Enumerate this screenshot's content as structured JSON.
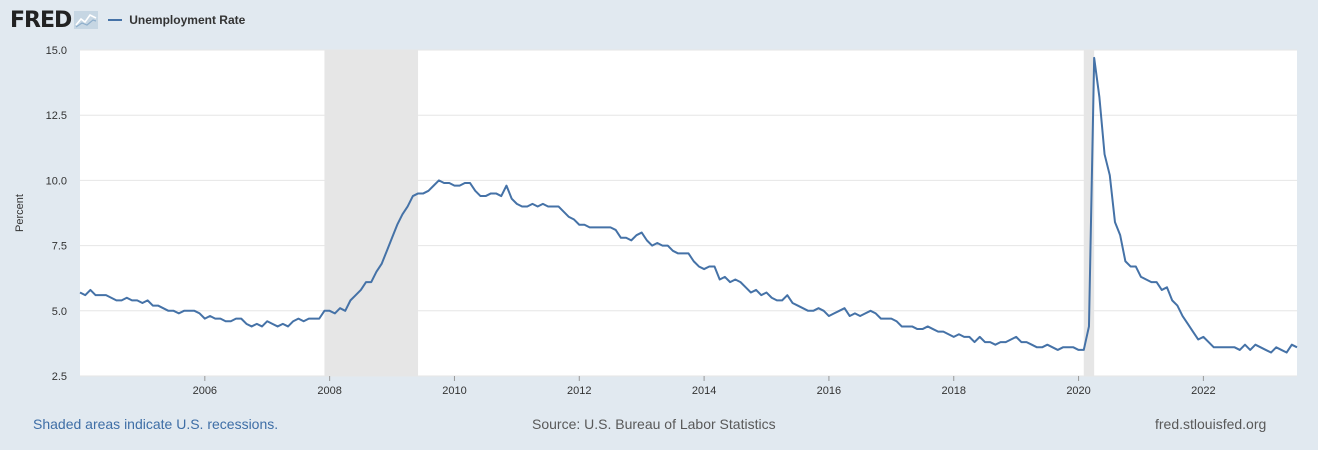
{
  "header": {
    "logo_text": "FRED",
    "logo_icon": "fred-chart-graph-icon",
    "legend_label": "Unemployment Rate"
  },
  "footer": {
    "recession_note": "Shaded areas indicate U.S. recessions.",
    "source": "Source: U.S. Bureau of Labor Statistics",
    "site": "fred.stlouisfed.org"
  },
  "colors": {
    "background": "#e1e9f0",
    "plot_background": "#ffffff",
    "line": "#4572a7",
    "recession_shade": "#e6e6e6",
    "link_text": "#3e6ea6",
    "axis_text": "#333333"
  },
  "chart_data": {
    "type": "line",
    "title": "",
    "xlabel": "",
    "ylabel": "Percent",
    "xlim": [
      2004.0,
      2023.5
    ],
    "ylim": [
      2.5,
      15.0
    ],
    "yticks": [
      "2.5",
      "5.0",
      "7.5",
      "10.0",
      "12.5",
      "15.0"
    ],
    "xticks": [
      "2006",
      "2008",
      "2010",
      "2012",
      "2014",
      "2016",
      "2018",
      "2020",
      "2022"
    ],
    "grid": "horizontal",
    "legend_position": "top-left",
    "frequency": "monthly",
    "start": "2004-01",
    "recessions": [
      {
        "start": "2007-12",
        "end": "2009-06"
      },
      {
        "start": "2020-02",
        "end": "2020-04"
      }
    ],
    "series": [
      {
        "name": "Unemployment Rate",
        "values": [
          5.7,
          5.6,
          5.8,
          5.6,
          5.6,
          5.6,
          5.5,
          5.4,
          5.4,
          5.5,
          5.4,
          5.4,
          5.3,
          5.4,
          5.2,
          5.2,
          5.1,
          5.0,
          5.0,
          4.9,
          5.0,
          5.0,
          5.0,
          4.9,
          4.7,
          4.8,
          4.7,
          4.7,
          4.6,
          4.6,
          4.7,
          4.7,
          4.5,
          4.4,
          4.5,
          4.4,
          4.6,
          4.5,
          4.4,
          4.5,
          4.4,
          4.6,
          4.7,
          4.6,
          4.7,
          4.7,
          4.7,
          5.0,
          5.0,
          4.9,
          5.1,
          5.0,
          5.4,
          5.6,
          5.8,
          6.1,
          6.1,
          6.5,
          6.8,
          7.3,
          7.8,
          8.3,
          8.7,
          9.0,
          9.4,
          9.5,
          9.5,
          9.6,
          9.8,
          10.0,
          9.9,
          9.9,
          9.8,
          9.8,
          9.9,
          9.9,
          9.6,
          9.4,
          9.4,
          9.5,
          9.5,
          9.4,
          9.8,
          9.3,
          9.1,
          9.0,
          9.0,
          9.1,
          9.0,
          9.1,
          9.0,
          9.0,
          9.0,
          8.8,
          8.6,
          8.5,
          8.3,
          8.3,
          8.2,
          8.2,
          8.2,
          8.2,
          8.2,
          8.1,
          7.8,
          7.8,
          7.7,
          7.9,
          8.0,
          7.7,
          7.5,
          7.6,
          7.5,
          7.5,
          7.3,
          7.2,
          7.2,
          7.2,
          6.9,
          6.7,
          6.6,
          6.7,
          6.7,
          6.2,
          6.3,
          6.1,
          6.2,
          6.1,
          5.9,
          5.7,
          5.8,
          5.6,
          5.7,
          5.5,
          5.4,
          5.4,
          5.6,
          5.3,
          5.2,
          5.1,
          5.0,
          5.0,
          5.1,
          5.0,
          4.8,
          4.9,
          5.0,
          5.1,
          4.8,
          4.9,
          4.8,
          4.9,
          5.0,
          4.9,
          4.7,
          4.7,
          4.7,
          4.6,
          4.4,
          4.4,
          4.4,
          4.3,
          4.3,
          4.4,
          4.3,
          4.2,
          4.2,
          4.1,
          4.0,
          4.1,
          4.0,
          4.0,
          3.8,
          4.0,
          3.8,
          3.8,
          3.7,
          3.8,
          3.8,
          3.9,
          4.0,
          3.8,
          3.8,
          3.7,
          3.6,
          3.6,
          3.7,
          3.6,
          3.5,
          3.6,
          3.6,
          3.6,
          3.5,
          3.5,
          4.4,
          14.7,
          13.2,
          11.0,
          10.2,
          8.4,
          7.9,
          6.9,
          6.7,
          6.7,
          6.3,
          6.2,
          6.1,
          6.1,
          5.8,
          5.9,
          5.4,
          5.2,
          4.8,
          4.5,
          4.2,
          3.9,
          4.0,
          3.8,
          3.6,
          3.6,
          3.6,
          3.6,
          3.6,
          3.5,
          3.7,
          3.5,
          3.7,
          3.6,
          3.5,
          3.4,
          3.6,
          3.5,
          3.4,
          3.7,
          3.6
        ]
      }
    ]
  }
}
